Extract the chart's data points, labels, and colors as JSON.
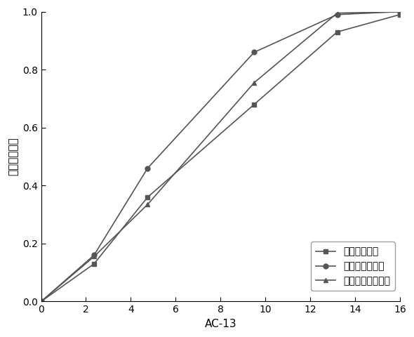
{
  "series": [
    {
      "label": "机械筛分级配",
      "x": [
        0,
        2.36,
        4.75,
        9.5,
        13.2,
        16
      ],
      "y": [
        0,
        0.13,
        0.36,
        0.68,
        0.93,
        0.99
      ],
      "marker": "s",
      "color": "#555555",
      "linewidth": 1.2,
      "markersize": 5
    },
    {
      "label": "球体近似体视学",
      "x": [
        0,
        2.36,
        4.75,
        9.5,
        13.2,
        16
      ],
      "y": [
        0,
        0.16,
        0.46,
        0.86,
        0.99,
        1.0
      ],
      "marker": "o",
      "color": "#555555",
      "linewidth": 1.2,
      "markersize": 5
    },
    {
      "label": "椭球体近似体视学",
      "x": [
        0,
        2.36,
        4.75,
        9.5,
        13.2,
        16
      ],
      "y": [
        0,
        0.155,
        0.335,
        0.755,
        0.995,
        1.0
      ],
      "marker": "^",
      "color": "#555555",
      "linewidth": 1.2,
      "markersize": 5
    }
  ],
  "xlabel": "AC-13",
  "ylabel": "机械筛分级配",
  "xlim": [
    0,
    16
  ],
  "ylim": [
    0.0,
    1.0
  ],
  "xticks": [
    0,
    2,
    4,
    6,
    8,
    10,
    12,
    14,
    16
  ],
  "yticks": [
    0.0,
    0.2,
    0.4,
    0.6,
    0.8,
    1.0
  ],
  "background_color": "#ffffff",
  "figure_width": 5.9,
  "figure_height": 4.8,
  "dpi": 100
}
